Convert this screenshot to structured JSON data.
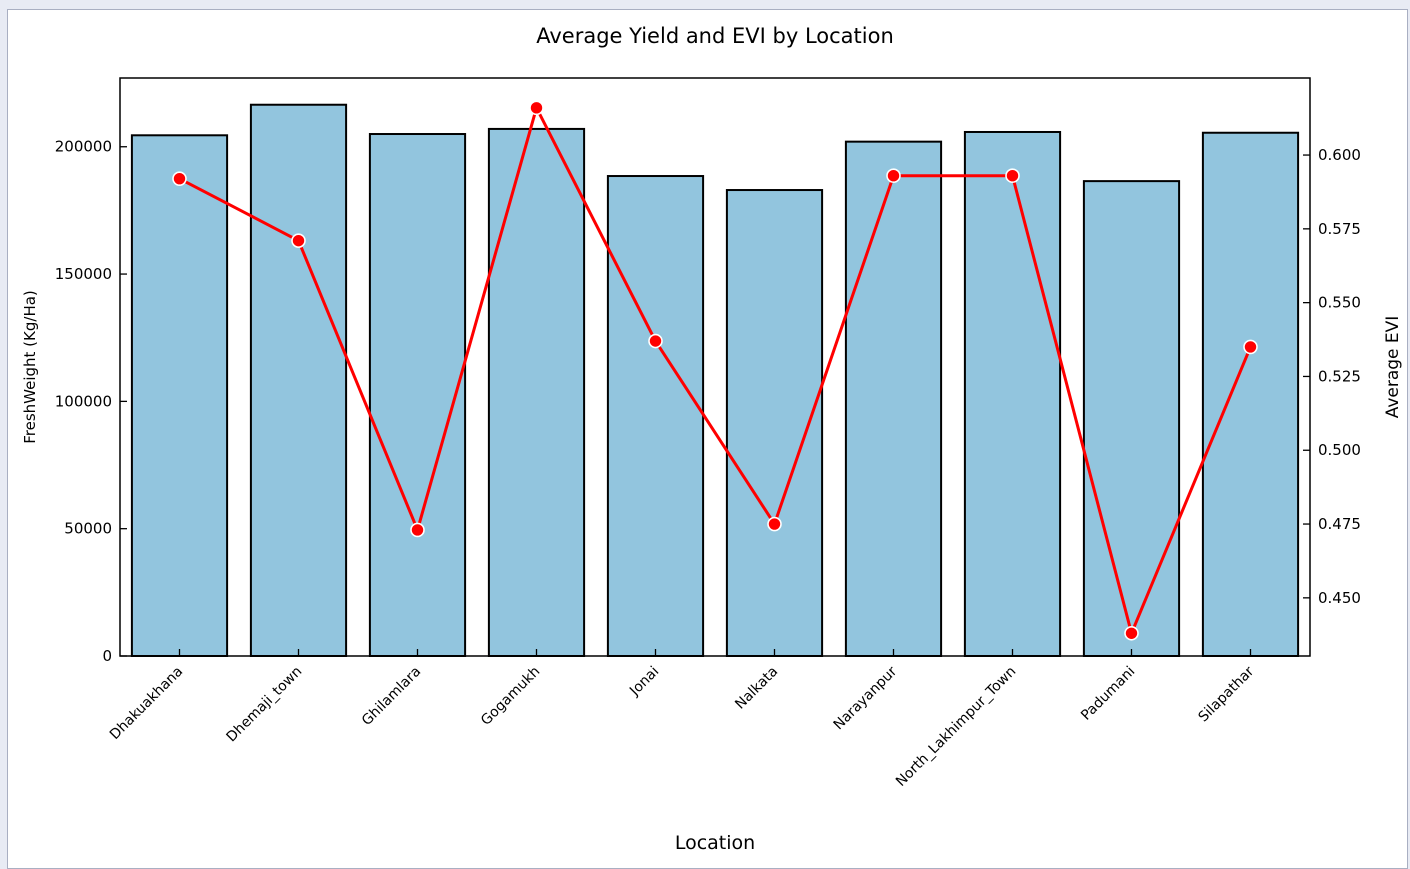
{
  "chart_data": {
    "type": "bar",
    "title": "Average Yield and EVI by Location",
    "xlabel": "Location",
    "ylabel": "FreshWeight (Kg/Ha)",
    "y2label": "Average EVI",
    "categories": [
      "Dhakuakhana",
      "Dhemaji_town",
      "Ghilamlara",
      "Gogamukh",
      "Jonai",
      "Nalkata",
      "Narayanpur",
      "North_Lakhimpur_Town",
      "Padumani",
      "Silapathar"
    ],
    "series": [
      {
        "type": "bar",
        "axis": "left",
        "values": [
          204500,
          216500,
          205000,
          207000,
          188500,
          183000,
          202000,
          205800,
          186500,
          205500
        ],
        "color": "#92c5de"
      },
      {
        "type": "line",
        "axis": "right",
        "values": [
          0.592,
          0.571,
          0.473,
          0.616,
          0.537,
          0.475,
          0.593,
          0.593,
          0.438,
          0.535
        ],
        "color": "#ff0000"
      }
    ],
    "ylim": [
      0,
      227000
    ],
    "y2lim": [
      0.4303,
      0.6261
    ],
    "yticks": [
      0,
      50000,
      100000,
      150000,
      200000
    ],
    "y2ticks": [
      "0.450",
      "0.475",
      "0.500",
      "0.525",
      "0.550",
      "0.575",
      "0.600"
    ],
    "grid": false,
    "legend": "none"
  }
}
